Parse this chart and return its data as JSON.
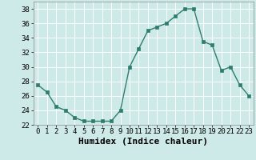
{
  "x": [
    0,
    1,
    2,
    3,
    4,
    5,
    6,
    7,
    8,
    9,
    10,
    11,
    12,
    13,
    14,
    15,
    16,
    17,
    18,
    19,
    20,
    21,
    22,
    23
  ],
  "y": [
    27.5,
    26.5,
    24.5,
    24,
    23,
    22.5,
    22.5,
    22.5,
    22.5,
    24,
    30,
    32.5,
    35,
    35.5,
    36,
    37,
    38,
    38,
    33.5,
    33,
    29.5,
    30,
    27.5,
    26
  ],
  "line_color": "#2e7d6e",
  "marker": "s",
  "marker_size": 2.5,
  "bg_color": "#ceeae8",
  "grid_color": "#ffffff",
  "xlabel": "Humidex (Indice chaleur)",
  "xlabel_fontsize": 8,
  "tick_fontsize": 6.5,
  "ylim": [
    22,
    39
  ],
  "yticks": [
    22,
    24,
    26,
    28,
    30,
    32,
    34,
    36,
    38
  ],
  "xlim": [
    -0.5,
    23.5
  ],
  "xticks": [
    0,
    1,
    2,
    3,
    4,
    5,
    6,
    7,
    8,
    9,
    10,
    11,
    12,
    13,
    14,
    15,
    16,
    17,
    18,
    19,
    20,
    21,
    22,
    23
  ]
}
